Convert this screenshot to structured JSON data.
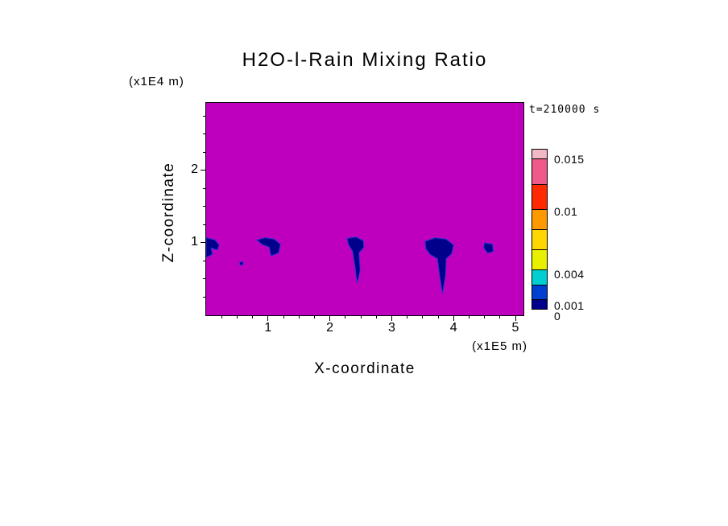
{
  "chart_data": {
    "type": "heatmap",
    "title": "H2O-l-Rain Mixing Ratio",
    "time_label": "t=210000 s",
    "xlabel": "X-coordinate",
    "x_unit": "(x1E5 m)",
    "ylabel": "Z-coordinate",
    "y_unit": "(x1E4 m)",
    "x_range": [
      0,
      5.13
    ],
    "z_range": [
      0,
      2.93
    ],
    "x_ticks": [
      1,
      2,
      3,
      4,
      5
    ],
    "z_ticks": [
      1,
      2
    ],
    "minor_tick_step": 0.25,
    "background_value": 0,
    "background_color": "#BE00BE",
    "rain_color": "#00008B",
    "rain_color_light": "#2233CC",
    "grid": false,
    "legend_position": "right-colorbar",
    "colorbar": {
      "vmin": 0,
      "vmax": 0.016,
      "labels": [
        {
          "value": 0,
          "text": "0"
        },
        {
          "value": 0.001,
          "text": "0.001"
        },
        {
          "value": 0.004,
          "text": "0.004"
        },
        {
          "value": 0.01,
          "text": "0.01"
        },
        {
          "value": 0.015,
          "text": "0.015"
        }
      ],
      "segments": [
        {
          "from": 0,
          "to": 0.001,
          "color": "#00008B"
        },
        {
          "from": 0.001,
          "to": 0.0025,
          "color": "#0040D0"
        },
        {
          "from": 0.0025,
          "to": 0.004,
          "color": "#00CED1"
        },
        {
          "from": 0.004,
          "to": 0.006,
          "color": "#E8F000"
        },
        {
          "from": 0.006,
          "to": 0.008,
          "color": "#FFD700"
        },
        {
          "from": 0.008,
          "to": 0.01,
          "color": "#FF9900"
        },
        {
          "from": 0.01,
          "to": 0.0125,
          "color": "#FF2A00"
        },
        {
          "from": 0.0125,
          "to": 0.015,
          "color": "#EE5A8A"
        },
        {
          "from": 0.015,
          "to": 0.016,
          "color": "#F2B8C6"
        }
      ]
    },
    "rain_features": [
      {
        "name": "patch-1",
        "approx_value_range": [
          0,
          0.001
        ],
        "points": [
          [
            0,
            1.07
          ],
          [
            0.14,
            1.04
          ],
          [
            0.21,
            0.97
          ],
          [
            0.18,
            0.9
          ],
          [
            0.08,
            0.93
          ],
          [
            0.1,
            0.84
          ],
          [
            0,
            0.8
          ]
        ]
      },
      {
        "name": "speck-1",
        "approx_value_range": [
          0,
          0.001
        ],
        "points": [
          [
            0.55,
            0.74
          ],
          [
            0.6,
            0.73
          ],
          [
            0.59,
            0.69
          ],
          [
            0.54,
            0.7
          ]
        ]
      },
      {
        "name": "patch-2",
        "approx_value_range": [
          0,
          0.001
        ],
        "points": [
          [
            0.82,
            1.04
          ],
          [
            0.95,
            1.07
          ],
          [
            1.1,
            1.05
          ],
          [
            1.2,
            0.98
          ],
          [
            1.17,
            0.86
          ],
          [
            1.05,
            0.82
          ],
          [
            1.02,
            0.94
          ],
          [
            0.9,
            0.98
          ]
        ]
      },
      {
        "name": "patch-3",
        "approx_value_range": [
          0,
          0.001
        ],
        "points": [
          [
            2.28,
            1.06
          ],
          [
            2.42,
            1.08
          ],
          [
            2.54,
            1.03
          ],
          [
            2.55,
            0.94
          ],
          [
            2.47,
            0.86
          ],
          [
            2.49,
            0.62
          ],
          [
            2.44,
            0.44
          ],
          [
            2.41,
            0.65
          ],
          [
            2.37,
            0.88
          ],
          [
            2.3,
            0.98
          ]
        ]
      },
      {
        "name": "patch-4",
        "approx_value_range": [
          0,
          0.001
        ],
        "points": [
          [
            3.54,
            1.02
          ],
          [
            3.7,
            1.07
          ],
          [
            3.88,
            1.05
          ],
          [
            4.0,
            0.97
          ],
          [
            3.97,
            0.85
          ],
          [
            3.88,
            0.78
          ],
          [
            3.87,
            0.55
          ],
          [
            3.82,
            0.3
          ],
          [
            3.78,
            0.52
          ],
          [
            3.74,
            0.78
          ],
          [
            3.62,
            0.84
          ],
          [
            3.55,
            0.92
          ]
        ]
      },
      {
        "name": "patch-5",
        "approx_value_range": [
          0,
          0.001
        ],
        "points": [
          [
            4.5,
            1.0
          ],
          [
            4.63,
            0.98
          ],
          [
            4.64,
            0.88
          ],
          [
            4.55,
            0.86
          ],
          [
            4.49,
            0.93
          ]
        ]
      }
    ]
  }
}
